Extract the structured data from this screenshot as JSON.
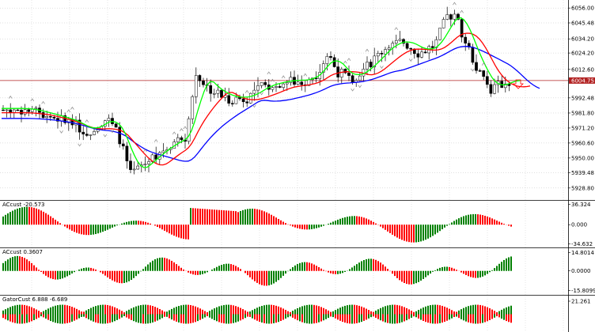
{
  "main": {
    "price_levels": [
      "6056.00",
      "6045.48",
      "6034.20",
      "6024.20",
      "6012.60",
      "6004.75",
      "5992.48",
      "5981.80",
      "5971.20",
      "5960.60",
      "5950.00",
      "5939.48",
      "5928.80"
    ],
    "current_price": "6004.75",
    "price_range": [
      5922,
      6060
    ],
    "current_value": 6004.75
  },
  "panels": [
    {
      "label": "ACcust -20.573",
      "levels": [
        "36.324",
        "0.000",
        "-34.632"
      ],
      "range": [
        -38,
        40
      ]
    },
    {
      "label": "ACcust 0.3607",
      "levels": [
        "14.8014",
        "0.0000",
        "-15.8099"
      ],
      "range": [
        -18,
        17
      ]
    },
    {
      "label": "GatorCust 6.888 -6.689",
      "levels": [
        "21.261"
      ],
      "range": [
        -24,
        24
      ]
    }
  ],
  "colors": {
    "up": "#008000",
    "down": "#ff0000",
    "green_ma": "#00ff00",
    "red_ma": "#ff0000",
    "blue_ma": "#0000ff",
    "grid": "#c0c0c0",
    "price_line": "#b22222"
  },
  "icons": {
    "arrow": "down-arrow-icon"
  }
}
